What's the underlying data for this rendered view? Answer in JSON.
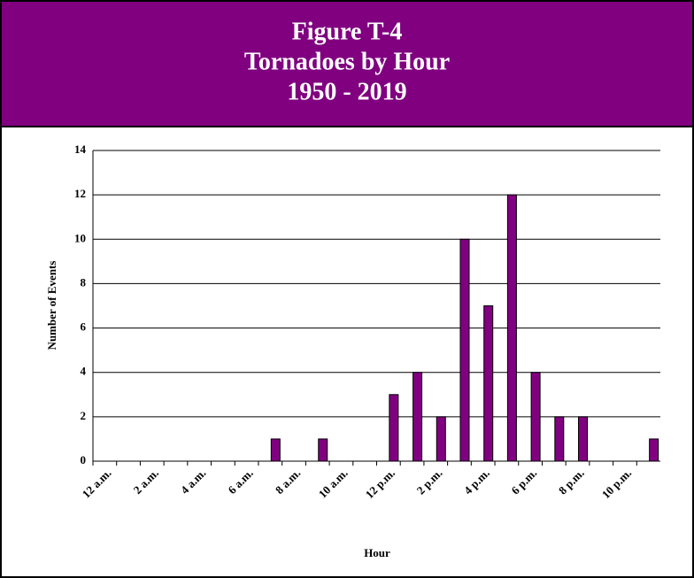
{
  "chart_data": {
    "type": "bar",
    "title": [
      "Figure T-4",
      "Tornadoes by Hour",
      "1950 - 2019"
    ],
    "x_label": "Hour",
    "y_label": "Number of Events",
    "categories": [
      "12 a.m.",
      null,
      "2 a.m.",
      null,
      "4 a.m.",
      null,
      "6 a.m.",
      null,
      "8 a.m.",
      null,
      "10 a.m.",
      null,
      "12 p.m.",
      null,
      "2 p.m.",
      null,
      "4 p.m.",
      null,
      "6 p.m.",
      null,
      "8 p.m.",
      null,
      "10 p.m.",
      null
    ],
    "values": [
      0,
      0,
      0,
      0,
      0,
      0,
      0,
      1,
      0,
      1,
      0,
      0,
      3,
      4,
      2,
      10,
      7,
      12,
      4,
      2,
      2,
      0,
      0,
      1
    ],
    "color": "#800080",
    "ylim": [
      0,
      14
    ],
    "yticks": [
      0,
      2,
      4,
      6,
      8,
      10,
      12,
      14
    ],
    "grid": true
  }
}
